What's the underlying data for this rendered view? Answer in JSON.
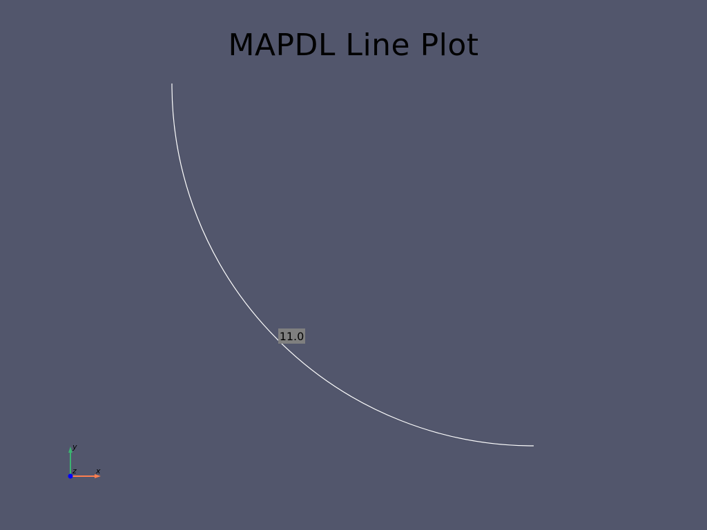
{
  "window": {
    "title": "MAPDL Line Plot",
    "background_color": "#52566c"
  },
  "line": {
    "label": "11.0",
    "color": "#ffffff",
    "label_background": "#7f7f7f"
  },
  "axes_widget": {
    "x_label": "x",
    "y_label": "y",
    "z_label": "z",
    "x_color": "#ff7f50",
    "y_color": "#3cb371",
    "z_color": "#0000ff"
  }
}
